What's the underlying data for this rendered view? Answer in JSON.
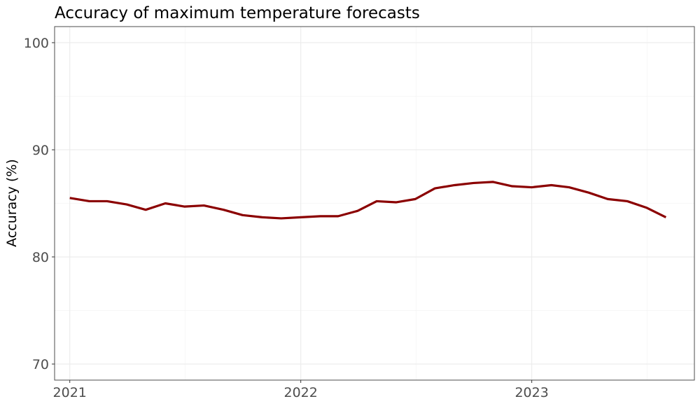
{
  "chart_data": {
    "type": "line",
    "title": "Accuracy of maximum temperature forecasts",
    "xlabel": "",
    "ylabel": "Accuracy (%)",
    "ylim": [
      68.5,
      101.5
    ],
    "yticks": [
      70,
      80,
      90,
      100
    ],
    "xticks": [
      "2021",
      "2022",
      "2023"
    ],
    "xlim": [
      "2020-12-08",
      "2023-09-15"
    ],
    "grid": true,
    "line_color": "#8b0000",
    "series": [
      {
        "x": [
          "2021-01-01",
          "2021-02-01",
          "2021-03-01",
          "2021-04-01",
          "2021-05-01",
          "2021-06-01",
          "2021-07-01",
          "2021-08-01",
          "2021-09-01",
          "2021-10-01",
          "2021-11-01",
          "2021-12-01",
          "2022-01-01",
          "2022-02-01",
          "2022-03-01",
          "2022-04-01",
          "2022-05-01",
          "2022-06-01",
          "2022-07-01",
          "2022-08-01",
          "2022-09-01",
          "2022-10-01",
          "2022-11-01",
          "2022-12-01",
          "2023-01-01",
          "2023-02-01",
          "2023-03-01",
          "2023-04-01",
          "2023-05-01",
          "2023-06-01",
          "2023-07-01",
          "2023-08-01"
        ],
        "values": [
          85.5,
          85.2,
          85.2,
          84.9,
          84.4,
          85.0,
          84.7,
          84.8,
          84.4,
          83.9,
          83.7,
          83.6,
          83.7,
          83.8,
          83.8,
          84.3,
          85.2,
          85.1,
          85.4,
          86.4,
          86.7,
          86.9,
          87.0,
          86.6,
          86.5,
          86.7,
          86.5,
          86.0,
          85.4,
          85.2,
          84.6,
          83.7
        ]
      }
    ]
  }
}
